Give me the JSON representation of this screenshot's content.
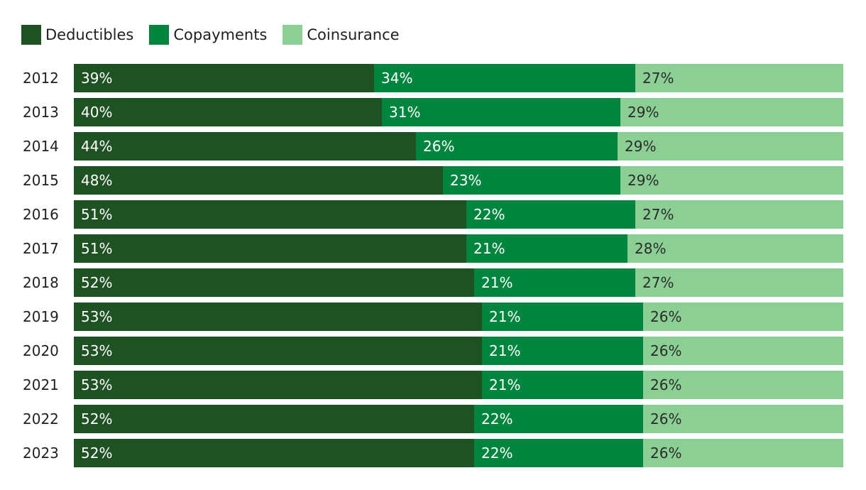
{
  "chart_data": {
    "type": "bar",
    "orientation": "horizontal",
    "stacked": true,
    "normalized_percent": true,
    "categories": [
      "2012",
      "2013",
      "2014",
      "2015",
      "2016",
      "2017",
      "2018",
      "2019",
      "2020",
      "2021",
      "2022",
      "2023"
    ],
    "series": [
      {
        "name": "Deductibles",
        "color": "#1f5223",
        "label_color": "#ffffff",
        "values": [
          39,
          40,
          44,
          48,
          51,
          51,
          52,
          53,
          53,
          53,
          52,
          52
        ]
      },
      {
        "name": "Copayments",
        "color": "#00853f",
        "label_color": "#ffffff",
        "values": [
          34,
          31,
          26,
          23,
          22,
          21,
          21,
          21,
          21,
          21,
          22,
          22
        ]
      },
      {
        "name": "Coinsurance",
        "color": "#8bcf94",
        "label_color": "#2b2b2b",
        "values": [
          27,
          29,
          29,
          29,
          27,
          28,
          27,
          26,
          26,
          26,
          26,
          26
        ]
      }
    ],
    "title": "",
    "xlabel": "",
    "ylabel": "",
    "value_suffix": "%",
    "grid": false,
    "legend_position": "top-left"
  }
}
